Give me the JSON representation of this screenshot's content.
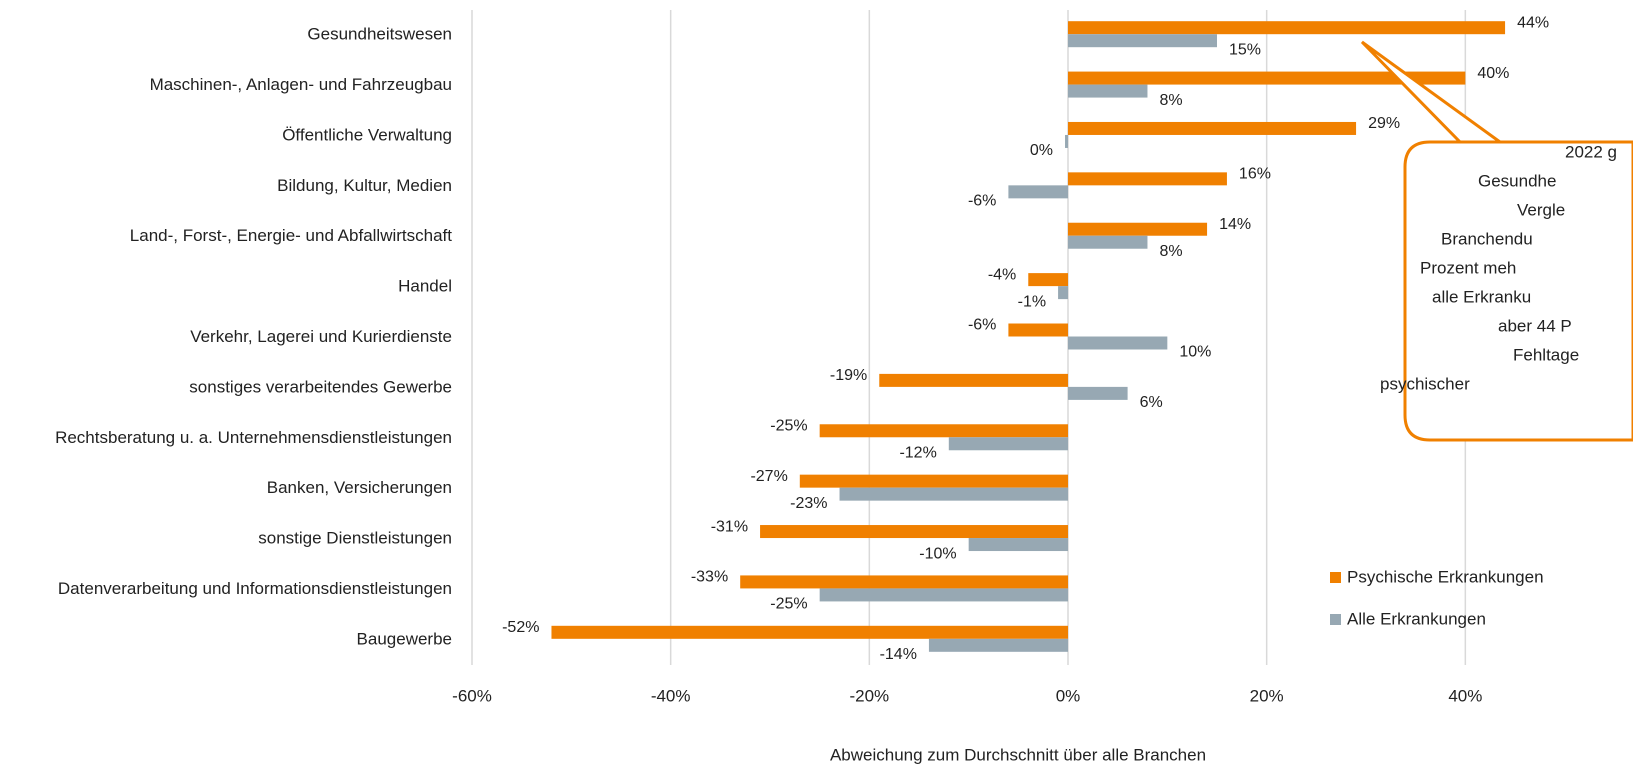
{
  "chart_data": {
    "type": "barh",
    "categories": [
      "Gesundheitswesen",
      "Maschinen-, Anlagen- und Fahrzeugbau",
      "Öffentliche Verwaltung",
      "Bildung, Kultur, Medien",
      "Land-, Forst-,  Energie- und Abfallwirtschaft",
      "Handel",
      "Verkehr, Lagerei und Kurierdienste",
      "sonstiges verarbeitendes Gewerbe",
      "Rechtsberatung u. a. Unternehmensdienstleistungen",
      "Banken, Versicherungen",
      "sonstige Dienstleistungen",
      "Datenverarbeitung und Informationsdienstleistungen",
      "Baugewerbe"
    ],
    "series": [
      {
        "name": "Psychische Erkrankungen",
        "color": "#f08000",
        "values": [
          44,
          40,
          29,
          16,
          14,
          -4,
          -6,
          -19,
          -25,
          -27,
          -31,
          -33,
          -52
        ],
        "value_labels": [
          "44%",
          "40%",
          "29%",
          "16%",
          "14%",
          "-4%",
          "-6%",
          "-19%",
          "-25%",
          "-27%",
          "-31%",
          "-33%",
          "-52%"
        ]
      },
      {
        "name": "Alle  Erkrankungen",
        "color": "#97a8b3",
        "values": [
          15,
          8,
          -0.3,
          -6,
          8,
          -1,
          10,
          6,
          -12,
          -23,
          -10,
          -25,
          -14
        ],
        "value_labels": [
          "15%",
          "8%",
          "0%",
          "-6%",
          "8%",
          "-1%",
          "10%",
          "6%",
          "-12%",
          "-23%",
          "-10%",
          "-25%",
          "-14%"
        ]
      }
    ],
    "xlim": [
      -60,
      60
    ],
    "xticks": [
      {
        "value": -60,
        "label": "-60%"
      },
      {
        "value": -40,
        "label": "-40%"
      },
      {
        "value": -20,
        "label": "-20%"
      },
      {
        "value": 0,
        "label": "0%"
      },
      {
        "value": 20,
        "label": "20%"
      },
      {
        "value": 40,
        "label": "40%"
      }
    ],
    "xlabel": "Abweichung zum Durchschnitt über alle Branchen",
    "grid": true,
    "legend": "lower right",
    "annotation": [
      "2022 g",
      "Gesundhe",
      "Vergle",
      "Branchendu",
      "Prozent meh",
      "alle  Erkranku",
      "aber 44 P",
      "Fehltage",
      "psychischer"
    ]
  }
}
